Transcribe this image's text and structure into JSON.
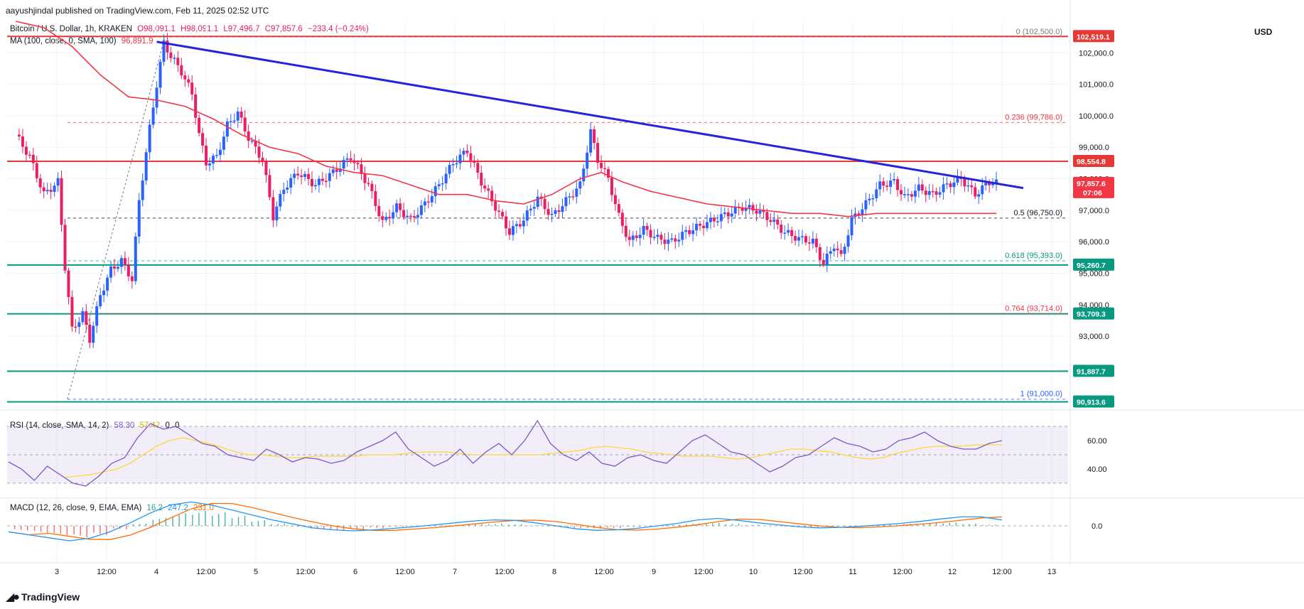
{
  "header": {
    "publisher": "aayushjindal published on TradingView.com, Feb 11, 2025 02:52 UTC"
  },
  "legend": {
    "symbol": "Bitcoin / U.S. Dollar, 1h, KRAKEN",
    "open": "O98,091.1",
    "high": "H98,091.1",
    "low": "L97,496.7",
    "close": "C97,857.6",
    "change": "−233.4 (−0.24%)",
    "ma_label": "MA (100, close, 0, SMA, 100)",
    "ma_value": "96,891.9",
    "rsi_label": "RSI (14, close, SMA, 14, 2)",
    "rsi_value": "58.30",
    "rsi_extra1": "57.42",
    "rsi_extra2": "0",
    "rsi_extra3": "0",
    "macd_label": "MACD (12, 26, close, 9, EMA, EMA)",
    "macd_hist": "16.2",
    "macd_line": "247.2",
    "macd_signal": "231.0"
  },
  "currency": "USD",
  "footer": {
    "brand": "TradingView"
  },
  "colors": {
    "up": "#2962ff",
    "down": "#e91e63",
    "ma": "#f23645",
    "trend": "#2424d8",
    "support": "#089981",
    "resistance": "#e53935",
    "rsi_line": "#7e57c2",
    "rsi_ma": "#fdd835",
    "macd_line": "#2196f3",
    "macd_signal": "#ff6d00"
  },
  "chart_data": {
    "type": "candlestick",
    "title": "Bitcoin / U.S. Dollar, 1h, KRAKEN",
    "x_tick_labels": [
      "3",
      "12:00",
      "4",
      "12:00",
      "5",
      "12:00",
      "6",
      "12:00",
      "7",
      "12:00",
      "8",
      "12:00",
      "9",
      "12:00",
      "10",
      "12:00",
      "11",
      "12:00",
      "12",
      "12:00",
      "13"
    ],
    "ylim": [
      90700,
      103000
    ],
    "y_ticks": [
      "93,000.0",
      "94,000.0",
      "95,000.0",
      "96,000.0",
      "97,000.0",
      "98,000.0",
      "99,000.0",
      "100,000.0",
      "101,000.0",
      "102,000.0"
    ],
    "horizontal_levels": [
      {
        "value": 102519.1,
        "label": "102,519.1",
        "kind": "resistance"
      },
      {
        "value": 98554.8,
        "label": "98,554.8",
        "kind": "resistance"
      },
      {
        "value": 95260.7,
        "label": "95,260.7",
        "kind": "support"
      },
      {
        "value": 93709.3,
        "label": "93,709.3",
        "kind": "support"
      },
      {
        "value": 91887.7,
        "label": "91,887.7",
        "kind": "support"
      },
      {
        "value": 90913.6,
        "label": "90,913.6",
        "kind": "support"
      }
    ],
    "last_price": {
      "value": 97857.6,
      "label": "97,857.6",
      "countdown": "07:06"
    },
    "fib_levels": [
      {
        "ratio": "0",
        "value": 102500,
        "label": "0 (102,500.0)",
        "color": "#787b86"
      },
      {
        "ratio": "0.236",
        "value": 99786,
        "label": "0.236 (99,786.0)",
        "color": "#f23645"
      },
      {
        "ratio": "0.5",
        "value": 96750,
        "label": "0.5 (96,750.0)",
        "color": "#131722"
      },
      {
        "ratio": "0.618",
        "value": 95393,
        "label": "0.618 (95,393.0)",
        "color": "#089981"
      },
      {
        "ratio": "0.764",
        "value": 93714,
        "label": "0.764 (93,714.0)",
        "color": "#f23645"
      },
      {
        "ratio": "1",
        "value": 91000,
        "label": "1 (91,000.0)",
        "color": "#2962ff"
      }
    ],
    "trend_line": {
      "from_bar": 40,
      "from_value": 102350,
      "to_bar": 278,
      "to_value": 97850
    },
    "close_path": [
      [
        0,
        99400
      ],
      [
        4,
        98700
      ],
      [
        8,
        97500
      ],
      [
        12,
        97900
      ],
      [
        14,
        95200
      ],
      [
        16,
        93200
      ],
      [
        19,
        93700
      ],
      [
        21,
        92900
      ],
      [
        24,
        94300
      ],
      [
        27,
        95100
      ],
      [
        30,
        95400
      ],
      [
        33,
        94800
      ],
      [
        35,
        97300
      ],
      [
        38,
        99600
      ],
      [
        40,
        101000
      ],
      [
        42,
        102300
      ],
      [
        44,
        101900
      ],
      [
        47,
        101400
      ],
      [
        50,
        100700
      ],
      [
        52,
        99400
      ],
      [
        54,
        98500
      ],
      [
        57,
        98700
      ],
      [
        60,
        99700
      ],
      [
        63,
        100100
      ],
      [
        66,
        99300
      ],
      [
        70,
        98600
      ],
      [
        73,
        96800
      ],
      [
        76,
        97700
      ],
      [
        80,
        98200
      ],
      [
        85,
        97800
      ],
      [
        90,
        98200
      ],
      [
        95,
        98700
      ],
      [
        100,
        97800
      ],
      [
        104,
        96600
      ],
      [
        108,
        97100
      ],
      [
        112,
        96700
      ],
      [
        116,
        97200
      ],
      [
        120,
        97800
      ],
      [
        124,
        98500
      ],
      [
        128,
        98900
      ],
      [
        132,
        97900
      ],
      [
        136,
        97100
      ],
      [
        140,
        96300
      ],
      [
        144,
        96700
      ],
      [
        148,
        97400
      ],
      [
        152,
        96800
      ],
      [
        156,
        97300
      ],
      [
        160,
        97800
      ],
      [
        163,
        99500
      ],
      [
        165,
        98600
      ],
      [
        168,
        98000
      ],
      [
        171,
        96800
      ],
      [
        174,
        96000
      ],
      [
        178,
        96400
      ],
      [
        182,
        96100
      ],
      [
        186,
        96000
      ],
      [
        190,
        96300
      ],
      [
        194,
        96500
      ],
      [
        198,
        96700
      ],
      [
        202,
        96900
      ],
      [
        206,
        97100
      ],
      [
        210,
        97000
      ],
      [
        214,
        96700
      ],
      [
        218,
        96300
      ],
      [
        222,
        96100
      ],
      [
        226,
        96000
      ],
      [
        229,
        95300
      ],
      [
        232,
        95900
      ],
      [
        234,
        95500
      ],
      [
        237,
        96700
      ],
      [
        241,
        97200
      ],
      [
        245,
        97800
      ],
      [
        249,
        97900
      ],
      [
        252,
        97400
      ],
      [
        256,
        97700
      ],
      [
        260,
        97500
      ],
      [
        264,
        97800
      ],
      [
        268,
        98000
      ],
      [
        272,
        97500
      ],
      [
        276,
        97900
      ],
      [
        278,
        97860
      ]
    ],
    "ma100_path": [
      [
        0,
        103000
      ],
      [
        8,
        102800
      ],
      [
        16,
        102200
      ],
      [
        24,
        101300
      ],
      [
        32,
        100600
      ],
      [
        40,
        100500
      ],
      [
        48,
        100300
      ],
      [
        56,
        99900
      ],
      [
        64,
        99400
      ],
      [
        72,
        99000
      ],
      [
        80,
        98800
      ],
      [
        88,
        98400
      ],
      [
        96,
        98200
      ],
      [
        104,
        98100
      ],
      [
        112,
        97800
      ],
      [
        120,
        97500
      ],
      [
        128,
        97500
      ],
      [
        136,
        97300
      ],
      [
        144,
        97200
      ],
      [
        152,
        97500
      ],
      [
        160,
        98000
      ],
      [
        166,
        98200
      ],
      [
        172,
        97900
      ],
      [
        180,
        97600
      ],
      [
        188,
        97400
      ],
      [
        196,
        97200
      ],
      [
        204,
        97100
      ],
      [
        212,
        97000
      ],
      [
        220,
        96900
      ],
      [
        228,
        96900
      ],
      [
        236,
        96800
      ],
      [
        244,
        96900
      ],
      [
        256,
        96900
      ],
      [
        268,
        96900
      ],
      [
        278,
        96900
      ]
    ],
    "rsi": {
      "ylim": [
        20,
        80
      ],
      "upper_band": 70,
      "lower_band": 30,
      "mid": 50,
      "values": [
        45,
        40,
        32,
        42,
        36,
        30,
        28,
        35,
        44,
        48,
        62,
        72,
        68,
        70,
        64,
        58,
        56,
        50,
        48,
        46,
        54,
        50,
        45,
        48,
        47,
        44,
        46,
        52,
        56,
        60,
        66,
        54,
        48,
        42,
        46,
        54,
        44,
        52,
        58,
        50,
        60,
        74,
        58,
        50,
        46,
        52,
        44,
        42,
        48,
        50,
        46,
        44,
        52,
        60,
        64,
        58,
        52,
        50,
        44,
        38,
        42,
        48,
        50,
        56,
        62,
        58,
        56,
        52,
        54,
        60,
        62,
        66,
        60,
        56,
        54,
        54,
        58,
        60
      ],
      "ma_values": [
        34,
        35,
        36,
        38,
        40,
        44,
        50,
        56,
        60,
        62,
        60,
        58,
        55,
        52,
        50,
        50,
        49,
        48,
        48,
        49,
        49,
        49,
        49,
        50,
        50,
        50,
        51,
        52,
        52,
        52,
        51,
        50,
        50,
        50,
        50,
        50,
        50,
        51,
        52,
        53,
        55,
        56,
        55,
        54,
        52,
        51,
        50,
        49,
        49,
        49,
        48,
        47,
        48,
        50,
        52,
        54,
        54,
        53,
        52,
        50,
        48,
        47,
        48,
        51,
        53,
        55,
        56,
        56,
        56,
        57,
        57,
        57
      ]
    },
    "macd": {
      "zero_label": "0.0",
      "hist": [
        -80,
        -120,
        -160,
        -200,
        -160,
        -60,
        40,
        140,
        220,
        260,
        240,
        180,
        100,
        40,
        -20,
        -60,
        -80,
        -60,
        -40,
        -20,
        -10,
        10,
        20,
        30,
        40,
        30,
        10,
        -20,
        -40,
        -50,
        -40,
        -20,
        0,
        20,
        40,
        50,
        40,
        20,
        0,
        -20,
        -30,
        -20,
        -10,
        10,
        20,
        40,
        50,
        60,
        40,
        20
      ],
      "line": [
        -120,
        -180,
        -240,
        -300,
        -250,
        -120,
        60,
        260,
        420,
        480,
        420,
        320,
        220,
        120,
        40,
        -40,
        -80,
        -100,
        -80,
        -50,
        -20,
        20,
        60,
        100,
        120,
        110,
        60,
        0,
        -60,
        -90,
        -80,
        -50,
        0,
        50,
        120,
        150,
        110,
        60,
        20,
        -20,
        -40,
        -30,
        -10,
        20,
        50,
        90,
        140,
        180,
        180,
        120
      ]
    }
  }
}
